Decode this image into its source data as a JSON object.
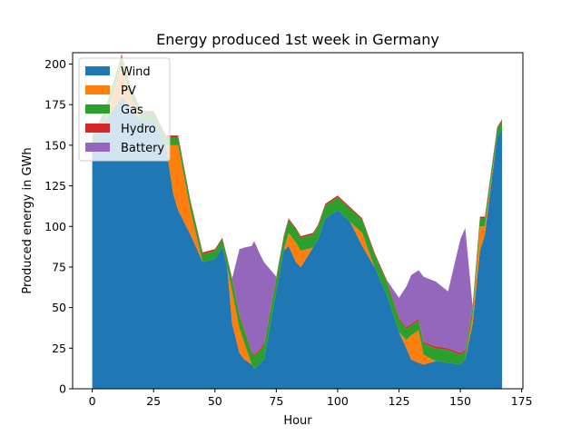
{
  "chart_data": {
    "type": "area",
    "title": "Energy produced 1st week in Germany",
    "xlabel": "Hour",
    "ylabel": "Produced energy in GWh",
    "xlim": [
      -8,
      175.5
    ],
    "ylim": [
      0,
      207
    ],
    "xticks": [
      0,
      25,
      50,
      75,
      100,
      125,
      150,
      175
    ],
    "yticks": [
      0,
      25,
      50,
      75,
      100,
      125,
      150,
      175,
      200
    ],
    "legend_position": "upper-left",
    "x_hours": [
      0,
      5,
      10,
      12,
      15,
      20,
      25,
      30,
      33,
      35,
      40,
      45,
      50,
      53,
      55,
      57,
      60,
      62,
      65,
      66,
      68,
      70,
      75,
      78,
      80,
      83,
      85,
      90,
      92,
      95,
      97,
      100,
      105,
      110,
      115,
      120,
      125,
      128,
      130,
      133,
      135,
      140,
      145,
      150,
      152,
      155,
      158,
      160,
      165,
      167
    ],
    "series": [
      {
        "name": "Wind",
        "color": "#1f77b4",
        "values": [
          150,
          165,
          175,
          180,
          175,
          165,
          165,
          150,
          120,
          110,
          95,
          78,
          80,
          87,
          75,
          40,
          22,
          18,
          15,
          12,
          15,
          18,
          60,
          85,
          88,
          78,
          75,
          87,
          92,
          105,
          107,
          110,
          103,
          88,
          75,
          58,
          35,
          25,
          18,
          16,
          15,
          17,
          16,
          15,
          18,
          40,
          85,
          95,
          155,
          160
        ]
      },
      {
        "name": "PV",
        "color": "#ff7f0e",
        "values": [
          0,
          0,
          15,
          20,
          8,
          0,
          0,
          0,
          30,
          40,
          15,
          0,
          0,
          0,
          0,
          20,
          15,
          10,
          0,
          0,
          0,
          0,
          0,
          0,
          8,
          12,
          10,
          0,
          0,
          0,
          0,
          0,
          0,
          8,
          0,
          0,
          0,
          5,
          15,
          20,
          6,
          0,
          0,
          0,
          0,
          5,
          15,
          5,
          0,
          0
        ]
      },
      {
        "name": "Gas",
        "color": "#2ca02c",
        "values": [
          5,
          5,
          5,
          5,
          5,
          5,
          5,
          5,
          5,
          5,
          5,
          5,
          5,
          5,
          5,
          7,
          8,
          8,
          7,
          8,
          8,
          9,
          8,
          8,
          8,
          8,
          8,
          8,
          8,
          8,
          8,
          8,
          8,
          8,
          8,
          8,
          8,
          7,
          6,
          6,
          7,
          8,
          8,
          6,
          5,
          5,
          5,
          5,
          5,
          5
        ]
      },
      {
        "name": "Hydro",
        "color": "#d62728",
        "values": [
          1,
          1,
          1,
          1,
          1,
          1,
          1,
          1,
          1,
          1,
          1,
          1,
          1,
          1,
          1,
          1,
          1,
          1,
          1,
          1,
          1,
          1,
          1,
          1,
          1,
          1,
          1,
          1,
          1,
          1,
          1,
          1,
          1,
          1,
          1,
          1,
          1,
          1,
          1,
          1,
          1,
          1,
          1,
          1,
          1,
          1,
          1,
          1,
          1,
          1
        ]
      },
      {
        "name": "Battery",
        "color": "#9467bd",
        "values": [
          0,
          0,
          0,
          0,
          0,
          0,
          0,
          0,
          0,
          0,
          0,
          0,
          0,
          0,
          0,
          0,
          40,
          50,
          65,
          70,
          60,
          50,
          0,
          0,
          0,
          0,
          0,
          0,
          0,
          0,
          0,
          0,
          0,
          0,
          0,
          0,
          12,
          25,
          30,
          30,
          40,
          40,
          35,
          70,
          75,
          0,
          0,
          0,
          0,
          0
        ]
      }
    ]
  }
}
